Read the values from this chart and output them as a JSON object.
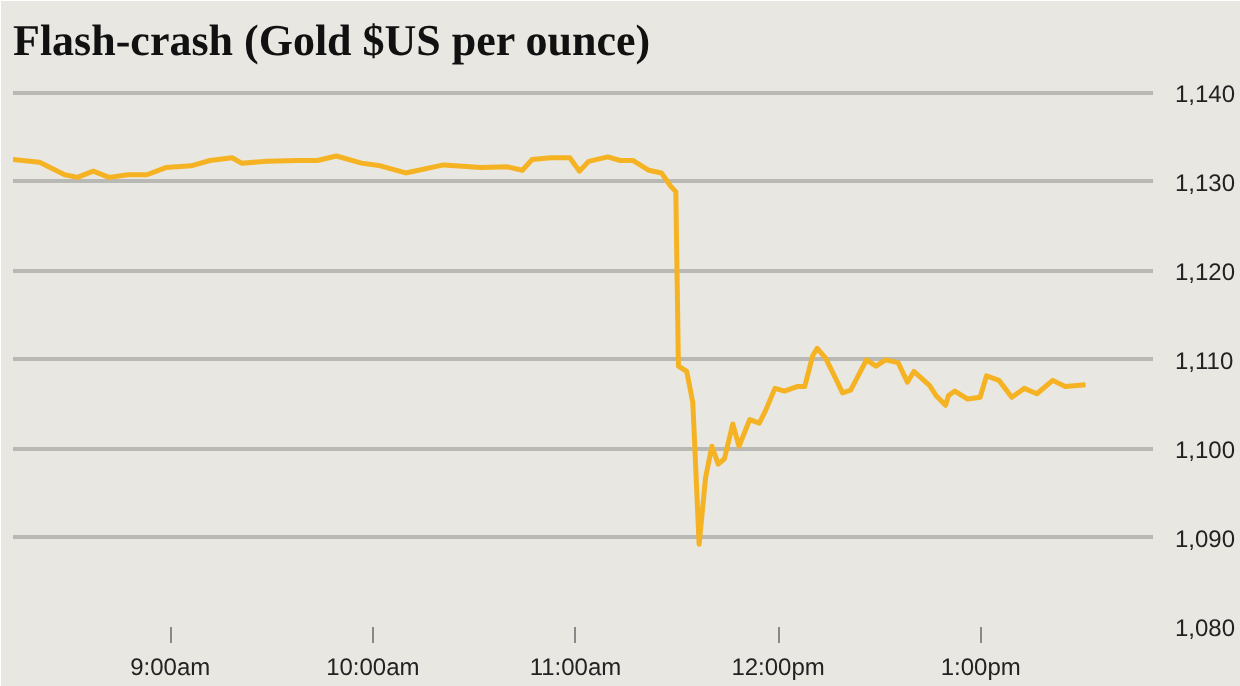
{
  "chart_data": {
    "type": "line",
    "title": "Flash-crash (Gold $US per ounce)",
    "x": [
      8.224,
      8.355,
      8.479,
      8.542,
      8.62,
      8.698,
      8.792,
      8.885,
      8.978,
      9.103,
      9.196,
      9.305,
      9.352,
      9.477,
      9.632,
      9.726,
      9.82,
      9.944,
      10.037,
      10.162,
      10.349,
      10.536,
      10.661,
      10.738,
      10.785,
      10.879,
      10.972,
      11.019,
      11.065,
      11.159,
      11.221,
      11.283,
      11.362,
      11.424,
      11.47,
      11.495,
      11.508,
      11.549,
      11.579,
      11.61,
      11.642,
      11.673,
      11.704,
      11.735,
      11.776,
      11.807,
      11.86,
      11.907,
      11.938,
      11.984,
      12.031,
      12.093,
      12.131,
      12.171,
      12.193,
      12.234,
      12.28,
      12.318,
      12.358,
      12.436,
      12.483,
      12.53,
      12.592,
      12.638,
      12.67,
      12.748,
      12.779,
      12.826,
      12.841,
      12.872,
      12.935,
      12.997,
      13.028,
      13.09,
      13.153,
      13.215,
      13.277,
      13.355,
      13.417,
      13.517
    ],
    "series": [
      {
        "color": "#f5b324",
        "values": [
          1132.5,
          1132.2,
          1130.8,
          1130.5,
          1131.2,
          1130.5,
          1130.8,
          1130.8,
          1131.6,
          1131.8,
          1132.4,
          1132.7,
          1132.1,
          1132.3,
          1132.4,
          1132.4,
          1132.9,
          1132.1,
          1131.8,
          1131.0,
          1131.9,
          1131.6,
          1131.7,
          1131.3,
          1132.5,
          1132.7,
          1132.7,
          1131.2,
          1132.3,
          1132.8,
          1132.4,
          1132.4,
          1131.3,
          1131.0,
          1129.5,
          1128.9,
          1109.3,
          1108.7,
          1105.2,
          1089.3,
          1096.8,
          1100.3,
          1098.3,
          1098.9,
          1102.8,
          1100.3,
          1103.3,
          1102.9,
          1104.3,
          1106.8,
          1106.5,
          1107.0,
          1107.0,
          1110.5,
          1111.3,
          1110.2,
          1108.1,
          1106.3,
          1106.6,
          1110.0,
          1109.3,
          1110.0,
          1109.7,
          1107.5,
          1108.7,
          1107.1,
          1106.0,
          1104.9,
          1106.0,
          1106.5,
          1105.6,
          1105.8,
          1108.2,
          1107.7,
          1105.8,
          1106.8,
          1106.2,
          1107.7,
          1107.0,
          1107.2
        ]
      }
    ],
    "xlim": [
      8.224,
      13.85
    ],
    "ylim": [
      1080,
      1142
    ],
    "xticks": [
      {
        "value": 9,
        "label": "9:00am"
      },
      {
        "value": 10,
        "label": "10:00am"
      },
      {
        "value": 11,
        "label": "11:00am"
      },
      {
        "value": 12,
        "label": "12:00pm"
      },
      {
        "value": 13,
        "label": "1:00pm"
      }
    ],
    "yticks": [
      {
        "value": 1080,
        "label": "1,080"
      },
      {
        "value": 1090,
        "label": "1,090"
      },
      {
        "value": 1100,
        "label": "1,100"
      },
      {
        "value": 1110,
        "label": "1,110"
      },
      {
        "value": 1120,
        "label": "1,120"
      },
      {
        "value": 1130,
        "label": "1,130"
      },
      {
        "value": 1140,
        "label": "1,140"
      }
    ],
    "grid": "y",
    "line_style": "solid"
  }
}
